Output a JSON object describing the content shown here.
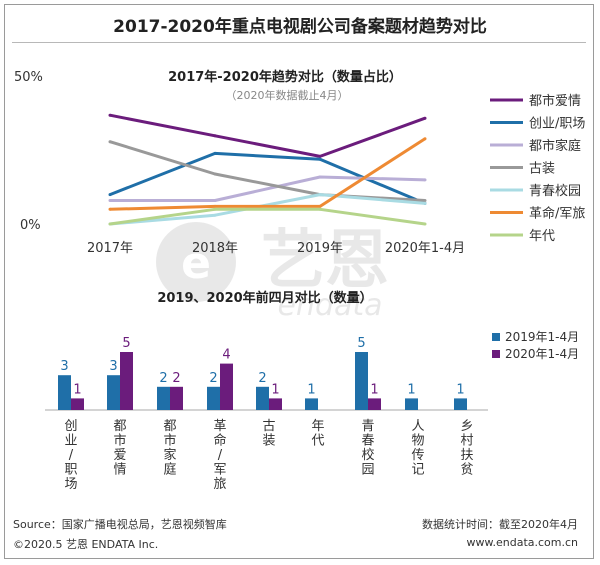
{
  "title": "2017-2020年重点电视剧公司备案题材趋势对比",
  "chart_data": [
    {
      "type": "line",
      "title": "2017年-2020年趋势对比（数量占比）",
      "subtitle": "（2020年数据截止4月）",
      "x": [
        "2017年",
        "2018年",
        "2019年",
        "2020年1-4月"
      ],
      "y_tick_labels": [
        "50%",
        "0%"
      ],
      "ylim": [
        0,
        50
      ],
      "grid": false,
      "legend_position": "right",
      "series": [
        {
          "name": "都市爱情",
          "color": "#6b1c7c",
          "values": [
            37,
            30,
            23,
            36
          ]
        },
        {
          "name": "创业/职场",
          "color": "#1f6fa8",
          "values": [
            10,
            24,
            22,
            7
          ]
        },
        {
          "name": "都市家庭",
          "color": "#b9aed6",
          "values": [
            8,
            8,
            16,
            15
          ]
        },
        {
          "name": "古装",
          "color": "#999999",
          "values": [
            28,
            17,
            10,
            8
          ]
        },
        {
          "name": "青春校园",
          "color": "#a9dbe3",
          "values": [
            0,
            3,
            10,
            7
          ]
        },
        {
          "name": "革命/军旅",
          "color": "#ee8a33",
          "values": [
            5,
            6,
            6,
            29
          ]
        },
        {
          "name": "年代",
          "color": "#b5d48a",
          "values": [
            0,
            5,
            5,
            0
          ]
        }
      ]
    },
    {
      "type": "bar",
      "title": "2019、2020年前四月对比（数量）",
      "categories": [
        "创业/职场",
        "都市爱情",
        "都市家庭",
        "革命/军旅",
        "古装",
        "年代",
        "青春校园",
        "人物传记",
        "乡村扶贫"
      ],
      "legend_position": "right",
      "series": [
        {
          "name": "2019年1-4月",
          "color": "#1f6fa8",
          "values": [
            3,
            3,
            2,
            2,
            2,
            1,
            5,
            1,
            1
          ]
        },
        {
          "name": "2020年1-4月",
          "color": "#6b1c7c",
          "values": [
            1,
            5,
            2,
            4,
            1,
            null,
            1,
            null,
            null
          ]
        }
      ]
    }
  ],
  "footer": {
    "source": "Source：国家广播电视总局，艺恩视频智库",
    "copyright": "©2020.5 艺恩 ENDATA Inc.",
    "stat_time": "数据统计时间：截至2020年4月",
    "website": "www.endata.com.cn"
  },
  "watermark": "艺恩 endata"
}
